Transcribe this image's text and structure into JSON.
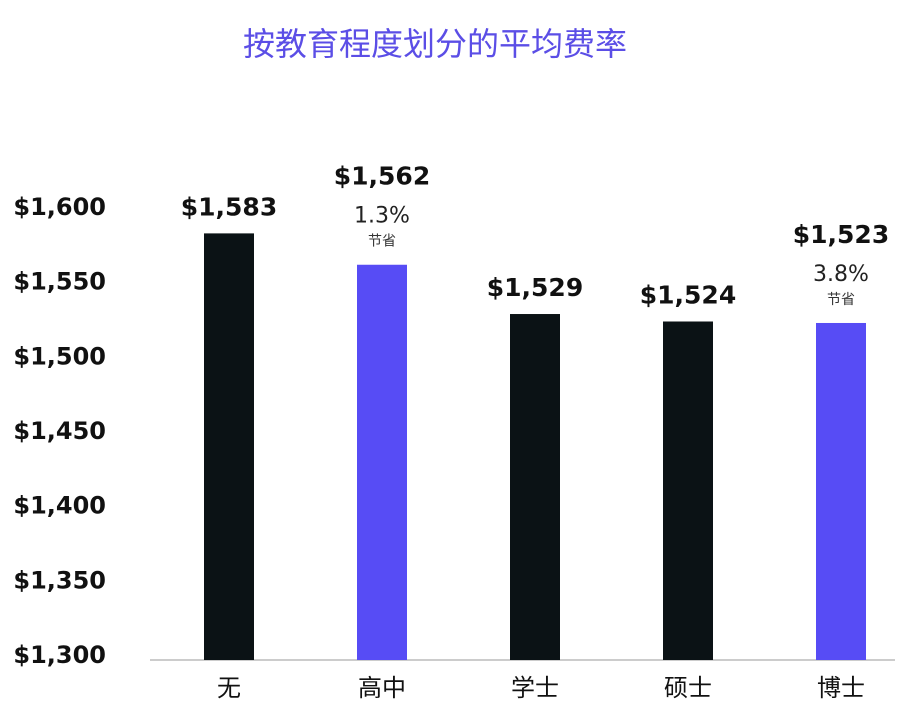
{
  "chart_data": {
    "type": "bar",
    "title": "按教育程度划分的平均费率",
    "categories": [
      "无",
      "高中",
      "学士",
      "硕士",
      "博士"
    ],
    "values": [
      1583,
      1562,
      1529,
      1524,
      1523
    ],
    "value_labels": [
      "$1,583",
      "$1,562",
      "$1,529",
      "$1,524",
      "$1,523"
    ],
    "colors": [
      "#0b1215",
      "#574cf5",
      "#0b1215",
      "#0b1215",
      "#574cf5"
    ],
    "annotations": [
      null,
      {
        "text": "1.3%",
        "note": "节省"
      },
      null,
      null,
      {
        "text": "3.8%",
        "note": "节省"
      }
    ],
    "ylim": [
      1300,
      1600
    ],
    "yticks": [
      {
        "value": 1300,
        "label": "$1,300"
      },
      {
        "value": 1350,
        "label": "$1,350"
      },
      {
        "value": 1400,
        "label": "$1,400"
      },
      {
        "value": 1450,
        "label": "$1,450"
      },
      {
        "value": 1500,
        "label": "$1,500"
      },
      {
        "value": 1550,
        "label": "$1,550"
      },
      {
        "value": 1600,
        "label": "$1,600"
      }
    ],
    "grid": false
  }
}
